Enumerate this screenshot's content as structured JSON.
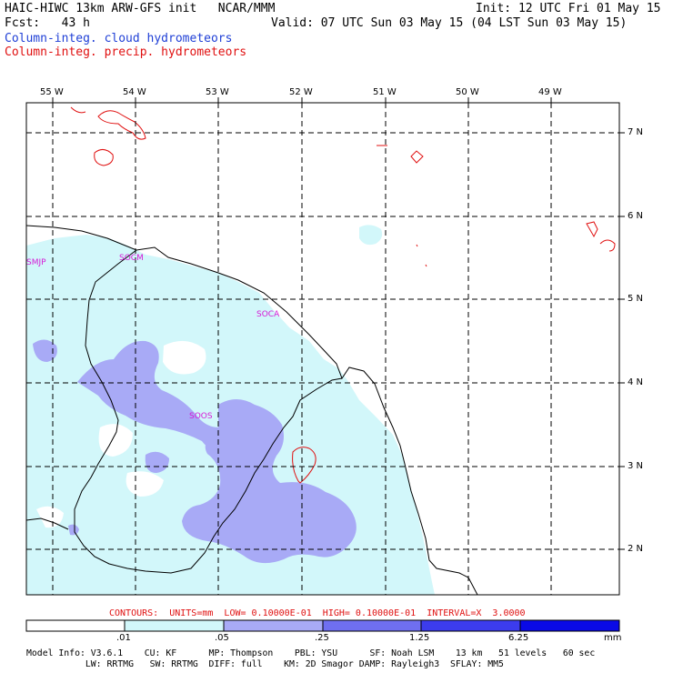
{
  "header": {
    "title_left": "HAIC-HIWC 13km ARW-GFS init   NCAR/MMM",
    "fcst": "Fcst:   43 h",
    "init": "Init: 12 UTC Fri 01 May 15",
    "valid": "Valid: 07 UTC Sun 03 May 15 (04 LST Sun 03 May 15)",
    "field_cloud": "Column-integ. cloud hydrometeors",
    "field_precip": "Column-integ. precip. hydrometeors"
  },
  "map": {
    "lon_labels": [
      "55 W",
      "54 W",
      "53 W",
      "52 W",
      "51 W",
      "50 W",
      "49 W"
    ],
    "lat_labels": [
      "7 N",
      "6 N",
      "5 N",
      "4 N",
      "3 N",
      "2 N"
    ],
    "stations": [
      {
        "id": "SMJP"
      },
      {
        "id": "SOCM"
      },
      {
        "id": "SOCA"
      },
      {
        "id": "SOOS"
      }
    ],
    "colors": {
      "cloud_level1": "#d2f7fa",
      "cloud_level2": "#a8aaf6",
      "contour_precip": "#e01010",
      "coastline": "#000000",
      "station_label": "#d61ad6"
    }
  },
  "contours_line": "CONTOURS:  UNITS=mm  LOW= 0.10000E-01  HIGH= 0.10000E-01  INTERVAL=X  3.0000",
  "colorbar": {
    "labels": [
      ".01",
      ".05",
      ".25",
      "1.25",
      "6.25"
    ],
    "unit": "mm",
    "colors": [
      "#ffffff",
      "#d2f7fa",
      "#a8aaf6",
      "#6f6ff0",
      "#3c3ced",
      "#0a0ae6"
    ]
  },
  "model_info": {
    "line1": "Model Info: V3.6.1    CU: KF      MP: Thompson    PBL: YSU      SF: Noah LSM    13 km   51 levels   60 sec",
    "line2": "           LW: RRTMG   SW: RRTMG  DIFF: full    KM: 2D Smagor DAMP: Rayleigh3  SFLAY: MM5"
  }
}
